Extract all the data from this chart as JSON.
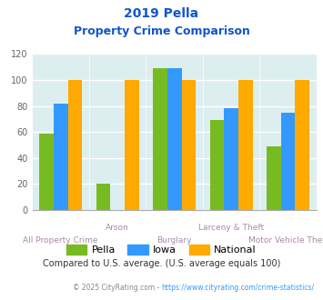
{
  "title_line1": "2019 Pella",
  "title_line2": "Property Crime Comparison",
  "categories": [
    "All Property Crime",
    "Arson",
    "Burglary",
    "Larceny & Theft",
    "Motor Vehicle Theft"
  ],
  "pella": [
    59,
    20,
    109,
    69,
    49
  ],
  "iowa": [
    82,
    0,
    109,
    78,
    75
  ],
  "national": [
    100,
    100,
    100,
    100,
    100
  ],
  "pella_color": "#77bb22",
  "iowa_color": "#3399ff",
  "national_color": "#ffaa00",
  "bg_color": "#ddeef0",
  "title_color": "#1155cc",
  "xlabel_color_top": "#aa88aa",
  "xlabel_color_bot": "#aa88aa",
  "ylabel_max": 120,
  "ylabel_ticks": [
    0,
    20,
    40,
    60,
    80,
    100,
    120
  ],
  "note_text": "Compared to U.S. average. (U.S. average equals 100)",
  "note_color": "#333333",
  "footer_prefix": "© 2025 CityRating.com - ",
  "footer_url": "https://www.cityrating.com/crime-statistics/",
  "footer_color": "#888888",
  "footer_url_color": "#3399ff",
  "legend_labels": [
    "Pella",
    "Iowa",
    "National"
  ],
  "top_labels": [
    "",
    "Arson",
    "",
    "Larceny & Theft",
    ""
  ],
  "bot_labels": [
    "All Property Crime",
    "",
    "Burglary",
    "",
    "Motor Vehicle Theft"
  ]
}
